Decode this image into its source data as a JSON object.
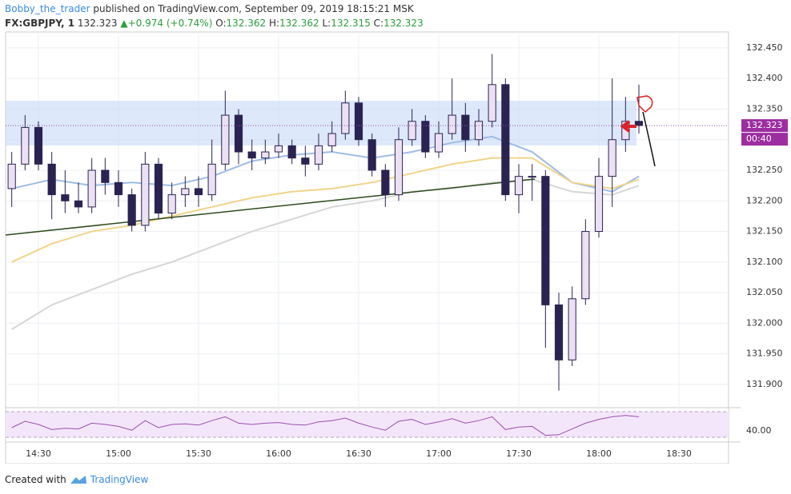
{
  "header": {
    "author": "Bobby_the_trader",
    "published": "published on TradingView.com, September 09, 2019 18:15:21 MSK",
    "symbol": "FX:GBPJPY, 1",
    "last": "132.323",
    "change": "+0.974 (+0.74%)",
    "o_label": "O:",
    "open": "132.362",
    "h_label": "H:",
    "high": "132.362",
    "l_label": "L:",
    "low": "132.315",
    "c_label": "C:",
    "close": "132.323"
  },
  "footer": {
    "created": "Created with",
    "brand": "TradingView"
  },
  "chart_data": {
    "type": "candlestick",
    "price_tag": {
      "value": 132.323,
      "label": "132.323"
    },
    "countdown": "00:40",
    "up_color": "#ece0f4",
    "down_color": "#2a2352",
    "wick_color": "#2a2352",
    "xlim": [
      857.7,
      1128.6
    ],
    "ylim": [
      131.862,
      132.476
    ],
    "xticks": [
      {
        "value": 870,
        "label": "14:30"
      },
      {
        "value": 900,
        "label": "15:00"
      },
      {
        "value": 930,
        "label": "15:30"
      },
      {
        "value": 960,
        "label": "16:00"
      },
      {
        "value": 990,
        "label": "16:30"
      },
      {
        "value": 1020,
        "label": "17:00"
      },
      {
        "value": 1050,
        "label": "17:30"
      },
      {
        "value": 1080,
        "label": "18:00"
      },
      {
        "value": 1110,
        "label": "18:30"
      }
    ],
    "yticks": [
      {
        "value": 131.9,
        "label": "131.900"
      },
      {
        "value": 131.95,
        "label": "131.950"
      },
      {
        "value": 132.0,
        "label": "132.000"
      },
      {
        "value": 132.05,
        "label": "132.050"
      },
      {
        "value": 132.1,
        "label": "132.100"
      },
      {
        "value": 132.15,
        "label": "132.150"
      },
      {
        "value": 132.2,
        "label": "132.200"
      },
      {
        "value": 132.25,
        "label": "132.250"
      },
      {
        "value": 132.3,
        "label": "132.300"
      },
      {
        "value": 132.35,
        "label": "132.350"
      },
      {
        "value": 132.4,
        "label": "132.400"
      },
      {
        "value": 132.45,
        "label": "132.450"
      }
    ],
    "x": [
      860,
      865,
      870,
      875,
      880,
      885,
      890,
      895,
      900,
      905,
      910,
      915,
      920,
      925,
      930,
      935,
      940,
      945,
      950,
      955,
      960,
      965,
      970,
      975,
      980,
      985,
      990,
      995,
      1000,
      1005,
      1010,
      1015,
      1020,
      1025,
      1030,
      1035,
      1040,
      1045,
      1050,
      1055,
      1060,
      1065,
      1070,
      1075,
      1080,
      1085,
      1090,
      1095
    ],
    "ohlc": [
      [
        132.22,
        132.28,
        132.19,
        132.26
      ],
      [
        132.26,
        132.34,
        132.25,
        132.32
      ],
      [
        132.32,
        132.33,
        132.25,
        132.26
      ],
      [
        132.26,
        132.28,
        132.17,
        132.21
      ],
      [
        132.21,
        132.25,
        132.18,
        132.2
      ],
      [
        132.2,
        132.23,
        132.18,
        132.19
      ],
      [
        132.19,
        132.27,
        132.18,
        132.25
      ],
      [
        132.25,
        132.27,
        132.21,
        132.23
      ],
      [
        132.23,
        132.25,
        132.19,
        132.21
      ],
      [
        132.21,
        132.22,
        132.15,
        132.16
      ],
      [
        132.16,
        132.28,
        132.15,
        132.26
      ],
      [
        132.26,
        132.27,
        132.17,
        132.18
      ],
      [
        132.18,
        132.23,
        132.17,
        132.21
      ],
      [
        132.21,
        132.24,
        132.19,
        132.22
      ],
      [
        132.22,
        132.24,
        132.19,
        132.21
      ],
      [
        132.21,
        132.3,
        132.2,
        132.26
      ],
      [
        132.26,
        132.38,
        132.25,
        132.34
      ],
      [
        132.34,
        132.35,
        132.26,
        132.28
      ],
      [
        132.28,
        132.3,
        132.25,
        132.27
      ],
      [
        132.27,
        132.3,
        132.26,
        132.28
      ],
      [
        132.28,
        132.31,
        132.27,
        132.29
      ],
      [
        132.29,
        132.3,
        132.26,
        132.27
      ],
      [
        132.27,
        132.29,
        132.24,
        132.26
      ],
      [
        132.26,
        132.31,
        132.25,
        132.29
      ],
      [
        132.29,
        132.33,
        132.28,
        132.31
      ],
      [
        132.31,
        132.38,
        132.3,
        132.36
      ],
      [
        132.36,
        132.37,
        132.29,
        132.3
      ],
      [
        132.3,
        132.31,
        132.24,
        132.25
      ],
      [
        132.25,
        132.26,
        132.19,
        132.21
      ],
      [
        132.21,
        132.32,
        132.2,
        132.3
      ],
      [
        132.3,
        132.35,
        132.29,
        132.33
      ],
      [
        132.33,
        132.34,
        132.27,
        132.28
      ],
      [
        132.28,
        132.33,
        132.27,
        132.31
      ],
      [
        132.31,
        132.4,
        132.3,
        132.34
      ],
      [
        132.34,
        132.36,
        132.28,
        132.3
      ],
      [
        132.3,
        132.35,
        132.29,
        132.33
      ],
      [
        132.33,
        132.44,
        132.32,
        132.39
      ],
      [
        132.39,
        132.4,
        132.2,
        132.21
      ],
      [
        132.21,
        132.26,
        132.18,
        132.24
      ],
      [
        132.24,
        132.26,
        132.2,
        132.24
      ],
      [
        132.24,
        132.25,
        131.96,
        132.03
      ],
      [
        132.03,
        132.05,
        131.89,
        131.94
      ],
      [
        131.94,
        132.06,
        131.93,
        132.04
      ],
      [
        132.04,
        132.17,
        132.03,
        132.15
      ],
      [
        132.15,
        132.27,
        132.14,
        132.24
      ],
      [
        132.24,
        132.4,
        132.19,
        132.3
      ],
      [
        132.3,
        132.37,
        132.28,
        132.33
      ],
      [
        132.33,
        132.39,
        132.31,
        132.323
      ]
    ],
    "series": [
      {
        "name": "ma-fast",
        "color": "#9fbce6",
        "x": [
          860,
          875,
          890,
          905,
          920,
          935,
          950,
          965,
          980,
          995,
          1010,
          1025,
          1040,
          1055,
          1070,
          1085,
          1095
        ],
        "values": [
          132.22,
          132.235,
          132.225,
          132.23,
          132.225,
          132.24,
          132.265,
          132.275,
          132.28,
          132.27,
          132.28,
          132.295,
          132.305,
          132.28,
          132.23,
          132.215,
          132.24
        ]
      },
      {
        "name": "ma-mid",
        "color": "#f0d488",
        "x": [
          860,
          875,
          890,
          905,
          920,
          935,
          950,
          965,
          980,
          995,
          1010,
          1025,
          1040,
          1055,
          1070,
          1085,
          1095
        ],
        "values": [
          132.1,
          132.13,
          132.15,
          132.16,
          132.175,
          132.19,
          132.205,
          132.215,
          132.22,
          132.23,
          132.245,
          132.26,
          132.27,
          132.27,
          132.23,
          132.22,
          132.235
        ]
      },
      {
        "name": "ma-slow",
        "color": "#d6d6d6",
        "x": [
          860,
          875,
          890,
          905,
          920,
          935,
          950,
          965,
          980,
          995,
          1010,
          1025,
          1040,
          1055,
          1070,
          1085,
          1095
        ],
        "values": [
          131.99,
          132.03,
          132.055,
          132.08,
          132.1,
          132.125,
          132.15,
          132.17,
          132.19,
          132.2,
          132.215,
          132.22,
          132.23,
          132.235,
          132.215,
          132.21,
          132.225
        ]
      }
    ],
    "rsi": {
      "color": "#9c4fb0",
      "ylim": [
        23.75,
        73.75
      ],
      "levels": [
        70,
        30
      ],
      "yticks": [
        {
          "value": 40,
          "label": "40.00"
        }
      ],
      "values": [
        45,
        55,
        50,
        42,
        44,
        43,
        52,
        50,
        47,
        41,
        56,
        45,
        50,
        51,
        49,
        56,
        62,
        52,
        50,
        52,
        53,
        50,
        49,
        54,
        56,
        60,
        52,
        46,
        41,
        55,
        58,
        50,
        54,
        59,
        52,
        56,
        62,
        42,
        46,
        47,
        33,
        34,
        43,
        52,
        58,
        62,
        64,
        62
      ]
    }
  }
}
